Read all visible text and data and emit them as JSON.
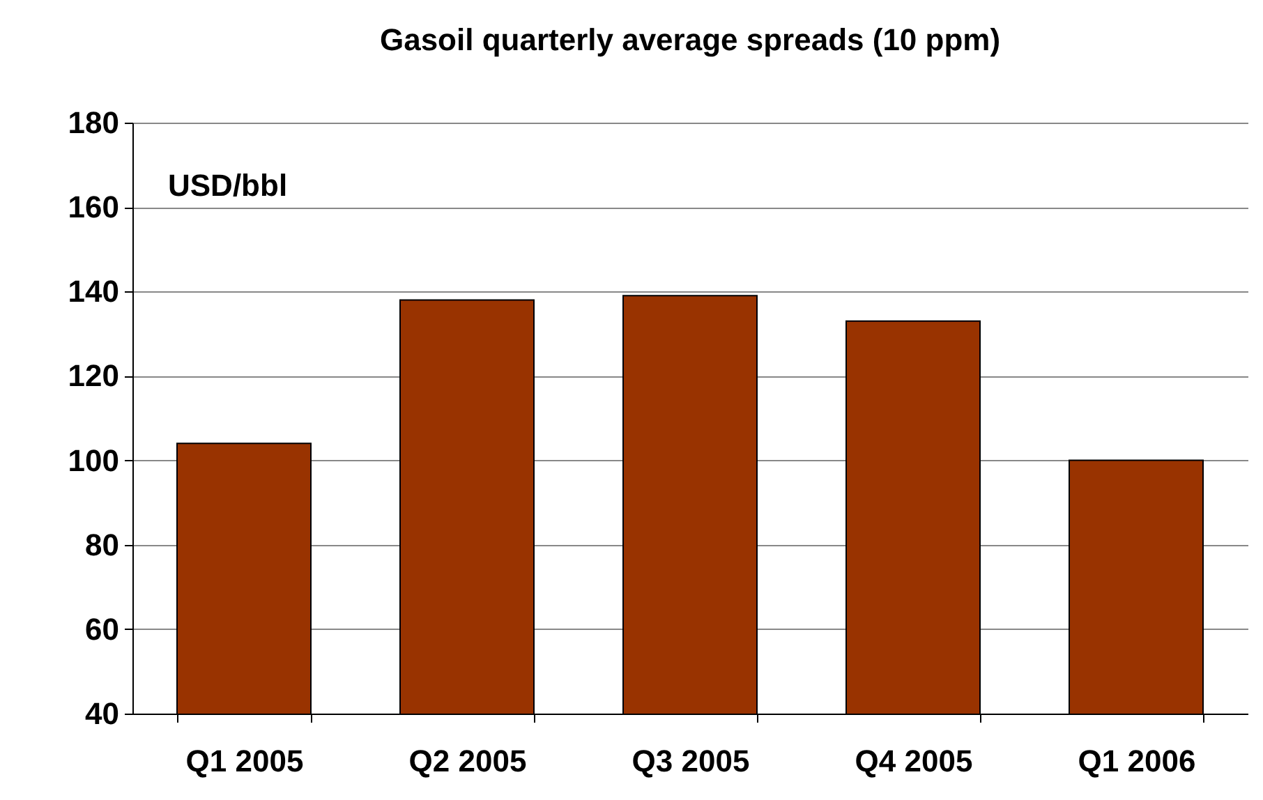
{
  "chart_data": {
    "type": "bar",
    "title": "Gasoil quarterly average spreads (10 ppm)",
    "ylabel": "USD/bbl",
    "categories": [
      "Q1 2005",
      "Q2 2005",
      "Q3 2005",
      "Q4 2005",
      "Q1 2006"
    ],
    "values": [
      104,
      138,
      139,
      133,
      100
    ],
    "color": "#993300",
    "ylim": [
      40,
      180
    ],
    "yticks": [
      40,
      60,
      80,
      100,
      120,
      140,
      160,
      180
    ],
    "grid": "y"
  }
}
